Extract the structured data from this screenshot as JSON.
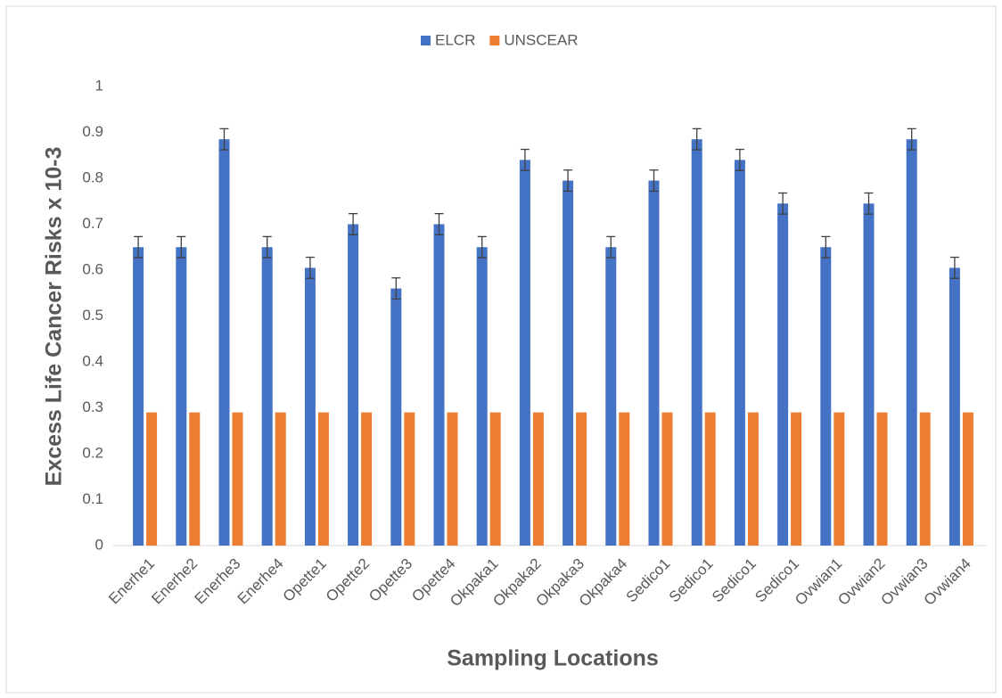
{
  "chart_data": {
    "type": "bar",
    "x_label": "Sampling Locations",
    "y_label": "Excess Life Cancer Risks x 10-3",
    "categories": [
      "Enerhe1",
      "Enerhe2",
      "Enerhe3",
      "Enerhe4",
      "Opette1",
      "Opette2",
      "Opette3",
      "Opette4",
      "Okpaka1",
      "Okpaka2",
      "Okpaka3",
      "Okpaka4",
      "Sedico1",
      "Sedico1",
      "Sedico1",
      "Sedico1",
      "Ovwian1",
      "Ovwian2",
      "Ovwian3",
      "Ovwian4"
    ],
    "series": [
      {
        "name": "ELCR",
        "color": "#4472c4",
        "values": [
          0.65,
          0.65,
          0.885,
          0.65,
          0.605,
          0.7,
          0.56,
          0.7,
          0.65,
          0.84,
          0.795,
          0.65,
          0.795,
          0.885,
          0.84,
          0.745,
          0.65,
          0.745,
          0.885,
          0.605
        ],
        "errors": [
          0.023,
          0.023,
          0.023,
          0.023,
          0.023,
          0.023,
          0.023,
          0.023,
          0.023,
          0.023,
          0.023,
          0.023,
          0.023,
          0.023,
          0.023,
          0.023,
          0.023,
          0.023,
          0.023,
          0.023
        ]
      },
      {
        "name": "UNSCEAR",
        "color": "#ed7d31",
        "values": [
          0.29,
          0.29,
          0.29,
          0.29,
          0.29,
          0.29,
          0.29,
          0.29,
          0.29,
          0.29,
          0.29,
          0.29,
          0.29,
          0.29,
          0.29,
          0.29,
          0.29,
          0.29,
          0.29,
          0.29
        ]
      }
    ],
    "ylim": [
      0,
      1
    ],
    "yticks": [
      0,
      0.1,
      0.2,
      0.3,
      0.4,
      0.5,
      0.6,
      0.7,
      0.8,
      0.9,
      1
    ],
    "grid": false,
    "legend": "top"
  }
}
